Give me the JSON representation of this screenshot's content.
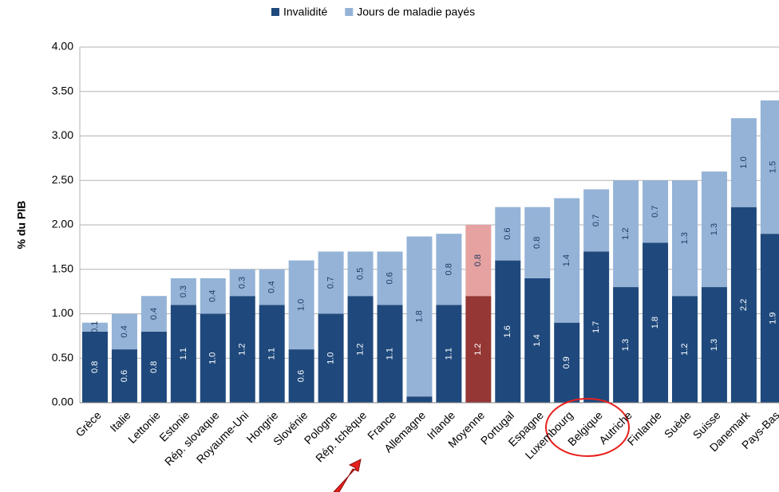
{
  "chart_data": {
    "type": "stacked_bar",
    "y_label": "% du PIB",
    "categories": [
      "Grèce",
      "Italie",
      "Lettonie",
      "Estonie",
      "Rép. slovaque",
      "Royaume-Uni",
      "Hongrie",
      "Slovénie",
      "Pologne",
      "Rép. tchèque",
      "France",
      "Allemagne",
      "Irlande",
      "Moyenne",
      "Portugal",
      "Espagne",
      "Luxembourg",
      "Belgique",
      "Autriche",
      "Finlande",
      "Suède",
      "Suisse",
      "Danemark",
      "Pays-Bas"
    ],
    "series": [
      {
        "name": "Invalidité",
        "color": "#1f497d",
        "values": [
          0.8,
          0.6,
          0.8,
          1.1,
          1.0,
          1.2,
          1.1,
          0.6,
          1.0,
          1.2,
          1.1,
          0.07,
          1.1,
          1.2,
          1.6,
          1.4,
          0.9,
          1.7,
          1.3,
          1.8,
          1.2,
          1.3,
          2.2,
          1.9
        ],
        "value_labels": [
          "0.8",
          "0.6",
          "0.8",
          "1.1",
          "1.0",
          "1.2",
          "1.1",
          "0.6",
          "1.0",
          "1.2",
          "1.1",
          null,
          "1.1",
          "1.2",
          "1.6",
          "1.4",
          "0.9",
          "1.7",
          "1.3",
          "1.8",
          "1.2",
          "1.3",
          "2.2",
          "1.9"
        ]
      },
      {
        "name": "Jours de maladie payés",
        "color": "#95b3d7",
        "values": [
          0.1,
          0.4,
          0.4,
          0.3,
          0.4,
          0.3,
          0.4,
          1.0,
          0.7,
          0.5,
          0.6,
          1.8,
          0.8,
          0.8,
          0.6,
          0.8,
          1.4,
          0.7,
          1.2,
          0.7,
          1.3,
          1.3,
          1.0,
          1.5
        ],
        "value_labels": [
          "0.1",
          "0.4",
          "0.4",
          "0.3",
          "0.4",
          "0.3",
          "0.4",
          "1.0",
          "0.7",
          "0.5",
          "0.6",
          "1.8",
          "0.8",
          "0.8",
          "0.6",
          "0.8",
          "1.4",
          "0.7",
          "1.2",
          "0.7",
          "1.3",
          "1.3",
          "1.0",
          "1.5"
        ]
      }
    ],
    "highlight_category": "Moyenne",
    "highlight_colors": [
      "#953735",
      "#e6a2a1"
    ],
    "ylim": [
      0,
      4
    ],
    "yticks": [
      {
        "value": 0,
        "label": "0.00"
      },
      {
        "value": 0.5,
        "label": "0.50"
      },
      {
        "value": 1,
        "label": "1.00"
      },
      {
        "value": 1.5,
        "label": "1.50"
      },
      {
        "value": 2,
        "label": "2.00"
      },
      {
        "value": 2.5,
        "label": "2.50"
      },
      {
        "value": 3,
        "label": "3.00"
      },
      {
        "value": 3.5,
        "label": "3.50"
      },
      {
        "value": 4,
        "label": "4.00"
      }
    ],
    "grid": true,
    "legend": "top"
  }
}
